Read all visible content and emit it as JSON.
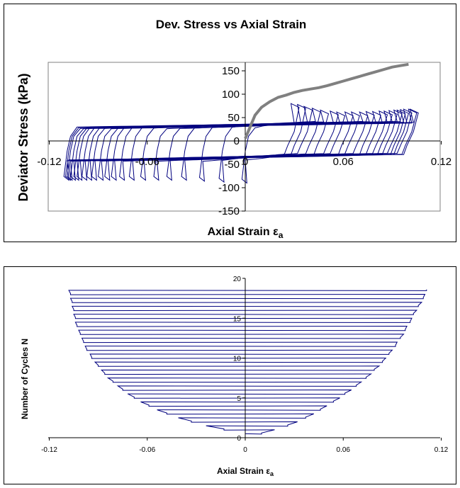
{
  "colors": {
    "loops": "#00007f",
    "monotonic": "#808080",
    "axis": "#000000",
    "plot_border": "#808080"
  },
  "chart_data": [
    {
      "type": "line",
      "title": "Dev. Stress vs Axial Strain",
      "xlabel": "Axial Strain",
      "xlabel_symbol": "ε",
      "xlabel_subscript": "a",
      "ylabel": "Deviator Stress (kPa)",
      "xlim": [
        -0.12,
        0.12
      ],
      "ylim": [
        -150,
        175
      ],
      "x_ticks": [
        "-0.12",
        "-0.06",
        "0",
        "0.06",
        "0.12"
      ],
      "y_ticks": [
        "-150",
        "-100",
        "-50",
        "0",
        "50",
        "100",
        "150"
      ],
      "grid": false,
      "monotonic_series": {
        "x": [
          0.0,
          0.003,
          0.006,
          0.01,
          0.015,
          0.02,
          0.025,
          0.03,
          0.035,
          0.04,
          0.045,
          0.05,
          0.055,
          0.06,
          0.065,
          0.07,
          0.075,
          0.08,
          0.085,
          0.09,
          0.095,
          0.1
        ],
        "y": [
          5,
          30,
          55,
          72,
          84,
          93,
          98,
          104,
          108,
          111,
          114,
          118,
          123,
          128,
          133,
          138,
          143,
          148,
          153,
          158,
          161,
          164
        ]
      },
      "cyclic_loops": {
        "amplitudes": [
          0.015,
          0.024,
          0.032,
          0.04,
          0.047,
          0.054,
          0.06,
          0.066,
          0.071,
          0.076,
          0.08,
          0.084,
          0.088,
          0.091,
          0.094,
          0.097,
          0.099,
          0.101,
          0.103,
          0.105,
          0.106
        ],
        "offsets": [
          0.015,
          0.01,
          0.006,
          0.003,
          0.001,
          0.0,
          -0.002,
          -0.003,
          -0.004,
          -0.004,
          -0.004,
          -0.004,
          -0.004,
          -0.004,
          -0.004,
          -0.004,
          -0.004,
          -0.004,
          -0.004,
          -0.003,
          -0.003
        ],
        "peak_compression": [
          80,
          78,
          74,
          70,
          66,
          64,
          62,
          62,
          62,
          62,
          63,
          63,
          64,
          64,
          65,
          66,
          66,
          67,
          68,
          68,
          68
        ],
        "peak_extension": [
          -90,
          -88,
          -86,
          -84,
          -84,
          -84,
          -84,
          -84,
          -84,
          -84,
          -84,
          -84,
          -84,
          -84,
          -84,
          -84,
          -84,
          -84,
          -84,
          -84,
          -84
        ]
      }
    },
    {
      "type": "line",
      "xlabel": "Axial Strain",
      "xlabel_symbol": "ε",
      "xlabel_subscript": "a",
      "ylabel": "Number of Cycles N",
      "xlim": [
        -0.12,
        0.12
      ],
      "ylim": [
        0,
        20
      ],
      "x_ticks": [
        "-0.12",
        "-0.06",
        "0",
        "0.06",
        "0.12"
      ],
      "y_ticks": [
        "0",
        "5",
        "10",
        "15",
        "20"
      ],
      "grid": false,
      "sweep_extents": [
        {
          "n": 0.5,
          "min": 0.0,
          "max": 0.01
        },
        {
          "n": 1.0,
          "min": -0.013,
          "max": 0.018
        },
        {
          "n": 1.5,
          "min": -0.024,
          "max": 0.026
        },
        {
          "n": 2.0,
          "min": -0.033,
          "max": 0.032
        },
        {
          "n": 2.5,
          "min": -0.041,
          "max": 0.037
        },
        {
          "n": 3.0,
          "min": -0.048,
          "max": 0.042
        },
        {
          "n": 3.5,
          "min": -0.054,
          "max": 0.046
        },
        {
          "n": 4.0,
          "min": -0.059,
          "max": 0.05
        },
        {
          "n": 4.5,
          "min": -0.064,
          "max": 0.054
        },
        {
          "n": 5.0,
          "min": -0.068,
          "max": 0.058
        },
        {
          "n": 5.5,
          "min": -0.072,
          "max": 0.061
        },
        {
          "n": 6.0,
          "min": -0.075,
          "max": 0.065
        },
        {
          "n": 6.5,
          "min": -0.078,
          "max": 0.068
        },
        {
          "n": 7.0,
          "min": -0.081,
          "max": 0.071
        },
        {
          "n": 7.5,
          "min": -0.084,
          "max": 0.074
        },
        {
          "n": 8.0,
          "min": -0.086,
          "max": 0.077
        },
        {
          "n": 8.5,
          "min": -0.088,
          "max": 0.079
        },
        {
          "n": 9.0,
          "min": -0.09,
          "max": 0.082
        },
        {
          "n": 9.5,
          "min": -0.092,
          "max": 0.084
        },
        {
          "n": 10.0,
          "min": -0.094,
          "max": 0.086
        },
        {
          "n": 10.5,
          "min": -0.095,
          "max": 0.088
        },
        {
          "n": 11.0,
          "min": -0.097,
          "max": 0.09
        },
        {
          "n": 11.5,
          "min": -0.098,
          "max": 0.092
        },
        {
          "n": 12.0,
          "min": -0.099,
          "max": 0.093
        },
        {
          "n": 12.5,
          "min": -0.1,
          "max": 0.095
        },
        {
          "n": 13.0,
          "min": -0.101,
          "max": 0.097
        },
        {
          "n": 13.5,
          "min": -0.102,
          "max": 0.098
        },
        {
          "n": 14.0,
          "min": -0.103,
          "max": 0.099
        },
        {
          "n": 14.5,
          "min": -0.104,
          "max": 0.101
        },
        {
          "n": 15.0,
          "min": -0.104,
          "max": 0.102
        },
        {
          "n": 15.5,
          "min": -0.105,
          "max": 0.103
        },
        {
          "n": 16.0,
          "min": -0.105,
          "max": 0.105
        },
        {
          "n": 16.5,
          "min": -0.106,
          "max": 0.106
        },
        {
          "n": 17.0,
          "min": -0.106,
          "max": 0.108
        },
        {
          "n": 17.5,
          "min": -0.107,
          "max": 0.109
        },
        {
          "n": 18.0,
          "min": -0.107,
          "max": 0.11
        },
        {
          "n": 18.5,
          "min": -0.108,
          "max": 0.111
        }
      ]
    }
  ]
}
